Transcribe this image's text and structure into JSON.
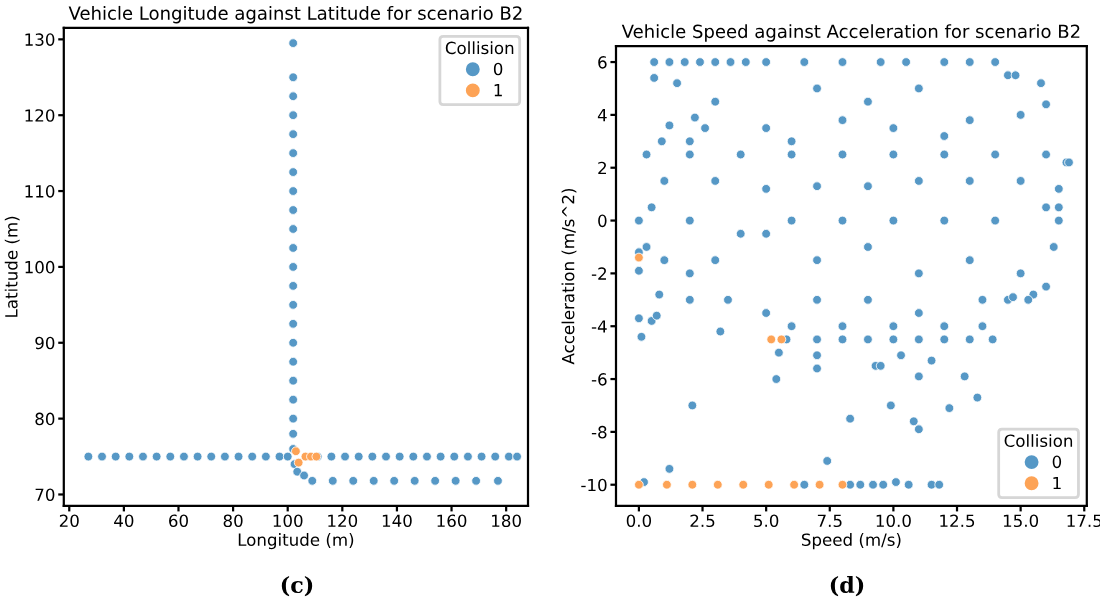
{
  "chart_data": [
    {
      "type": "scatter",
      "title": "Vehicle Longitude against Latitude for scenario B2",
      "xlabel": "Longitude (m)",
      "ylabel": "Latitude (m)",
      "legend_title": "Collision",
      "legend": "top right",
      "marker": "circle",
      "grid": false,
      "xlim": [
        18,
        188
      ],
      "ylim": [
        68.5,
        131.5
      ],
      "xticks": [
        20,
        40,
        60,
        80,
        100,
        120,
        140,
        160,
        180
      ],
      "yticks": [
        70,
        80,
        90,
        100,
        110,
        120,
        130
      ],
      "annotations": [
        "(c)"
      ],
      "series": [
        {
          "name": "0",
          "color": "#5698c6",
          "x": [
            27,
            32,
            37,
            42,
            47,
            52,
            57,
            62,
            67,
            72,
            77,
            82,
            87,
            92,
            97,
            100,
            102,
            102,
            102,
            102,
            102,
            102,
            102,
            102,
            102,
            102,
            102,
            102,
            102,
            102,
            102,
            102,
            102,
            102,
            102,
            102,
            102,
            102,
            102.5,
            103.5,
            106,
            109,
            116.5,
            124,
            131.5,
            139,
            146.5,
            154,
            161.5,
            169,
            177,
            111,
            116,
            121,
            126,
            131,
            136,
            141,
            146,
            151,
            156,
            161,
            166,
            171,
            176,
            181,
            184
          ],
          "values": [
            75,
            75,
            75,
            75,
            75,
            75,
            75,
            75,
            75,
            75,
            75,
            75,
            75,
            75,
            75,
            75,
            76,
            78,
            80,
            82.5,
            85,
            87.5,
            90,
            92.5,
            95,
            97.5,
            100,
            102.5,
            105,
            107.5,
            110,
            112.5,
            115,
            117.5,
            120,
            122.5,
            125,
            129.5,
            74,
            73,
            72.5,
            71.8,
            71.8,
            71.8,
            71.8,
            71.8,
            71.8,
            71.8,
            71.8,
            71.8,
            71.8,
            75,
            75,
            75,
            75,
            75,
            75,
            75,
            75,
            75,
            75,
            75,
            75,
            75,
            75,
            75,
            75
          ]
        },
        {
          "name": "1",
          "color": "#fda356",
          "x": [
            103,
            104,
            106.5,
            108.5,
            110.5
          ],
          "values": [
            75.7,
            74.2,
            75,
            75,
            75
          ]
        }
      ]
    },
    {
      "type": "scatter",
      "title": "Vehicle Speed against Acceleration for scenario B2",
      "xlabel": "Speed (m/s)",
      "ylabel": "Acceleration (m/s^2)",
      "legend_title": "Collision",
      "legend": "bottom right",
      "marker": "circle",
      "grid": false,
      "xlim": [
        -0.9,
        17.6
      ],
      "ylim": [
        -10.8,
        6.6
      ],
      "xticks": [
        {
          "value": 0,
          "label": "0.0"
        },
        2.5,
        {
          "value": 5,
          "label": "5.0"
        },
        7.5,
        {
          "value": 10,
          "label": "10.0"
        },
        12.5,
        {
          "value": 15,
          "label": "15.0"
        },
        17.5
      ],
      "yticks": [
        -10,
        -8,
        -6,
        -4,
        -2,
        0,
        2,
        4,
        6
      ],
      "annotations": [
        "(d)"
      ],
      "series": [
        {
          "name": "0",
          "color": "#5698c6",
          "x": [
            0.6,
            1.2,
            1.8,
            2.4,
            3,
            3.6,
            4.2,
            5,
            6.5,
            8,
            9.5,
            10.5,
            12,
            13,
            14,
            14.5,
            0.6,
            1.5,
            3,
            5,
            6,
            8,
            10,
            12,
            13,
            15,
            16,
            15.8,
            14.8,
            11,
            9,
            7,
            0.3,
            2,
            4,
            6,
            8,
            10,
            12,
            14,
            16,
            16.8,
            1,
            3,
            5,
            7,
            9,
            11,
            13,
            15,
            16.5,
            0,
            0.5,
            2,
            4,
            6,
            8,
            10,
            12,
            14,
            16,
            16.5,
            0.3,
            1,
            2,
            3,
            5,
            7,
            9,
            11,
            13,
            15,
            16,
            16.3,
            0.8,
            2,
            3.5,
            5,
            7,
            9,
            11,
            13.5,
            14.5,
            15.5,
            5.8,
            7,
            8,
            9,
            10,
            11,
            12,
            13,
            13.9,
            6,
            8,
            10,
            12,
            13.5,
            0,
            0,
            0,
            0.1,
            0.5,
            0.7,
            3.2,
            2.1,
            1.2,
            0.2,
            5.4,
            5.5,
            7,
            7,
            8.3,
            7.4,
            9.3,
            9.5,
            9.9,
            10.3,
            10.8,
            11,
            11,
            11.5,
            12.2,
            12.8,
            13.3,
            6.5,
            8.3,
            8.7,
            9.2,
            9.6,
            10.1,
            10.6,
            11.5,
            11.8,
            0.9,
            1.2,
            2.2,
            2.6,
            2,
            16.9,
            16.5,
            14.7,
            15.3
          ],
          "values": [
            6,
            6,
            6,
            6,
            6,
            6,
            6,
            6,
            6,
            6,
            6,
            6,
            6,
            6,
            6,
            5.5,
            5.4,
            5.2,
            4.5,
            3.5,
            3,
            3.8,
            3.5,
            3.2,
            3.8,
            4,
            4.4,
            5.2,
            5.5,
            5,
            4.5,
            5,
            2.5,
            2.5,
            2.5,
            2.5,
            2.5,
            2.5,
            2.5,
            2.5,
            2.5,
            2.2,
            1.5,
            1.5,
            1.2,
            1.3,
            1.3,
            1.5,
            1.5,
            1.5,
            1.2,
            0,
            0.5,
            0,
            -0.5,
            0,
            0,
            0,
            0,
            0,
            0.5,
            0,
            -1,
            -1.5,
            -2,
            -1.5,
            -0.5,
            -1.5,
            -1,
            -2,
            -1.5,
            -2,
            -2.5,
            -1,
            -2.8,
            -3,
            -3,
            -3.5,
            -3,
            -3,
            -3.5,
            -3,
            -3,
            -2.8,
            -4.5,
            -4.5,
            -4.5,
            -4.5,
            -4.5,
            -4.5,
            -4.5,
            -4.5,
            -4.5,
            -4,
            -4,
            -4,
            -4,
            -4,
            -1.2,
            -1.9,
            -3.7,
            -4.4,
            -3.8,
            -3.6,
            -4.2,
            -7,
            -9.4,
            -9.9,
            -6,
            -5,
            -5.1,
            -5.6,
            -7.5,
            -9.1,
            -5.5,
            -5.5,
            -7,
            -5.1,
            -7.6,
            -7.9,
            -5.9,
            -5.3,
            -7.1,
            -5.9,
            -6.7,
            -10,
            -10,
            -10,
            -10,
            -10,
            -9.9,
            -10,
            -10,
            -10,
            3,
            3.6,
            3.9,
            3.5,
            3,
            2.2,
            0.5,
            -2.9,
            -3
          ]
        },
        {
          "name": "1",
          "color": "#fda356",
          "x": [
            0,
            0,
            1.1,
            2.1,
            3.1,
            4.1,
            5.1,
            6.1,
            7.1,
            8.0,
            5.2,
            5.6
          ],
          "values": [
            -1.4,
            -10,
            -10,
            -10,
            -10,
            -10,
            -10,
            -10,
            -10,
            -10,
            -4.5,
            -4.5
          ]
        }
      ]
    }
  ]
}
